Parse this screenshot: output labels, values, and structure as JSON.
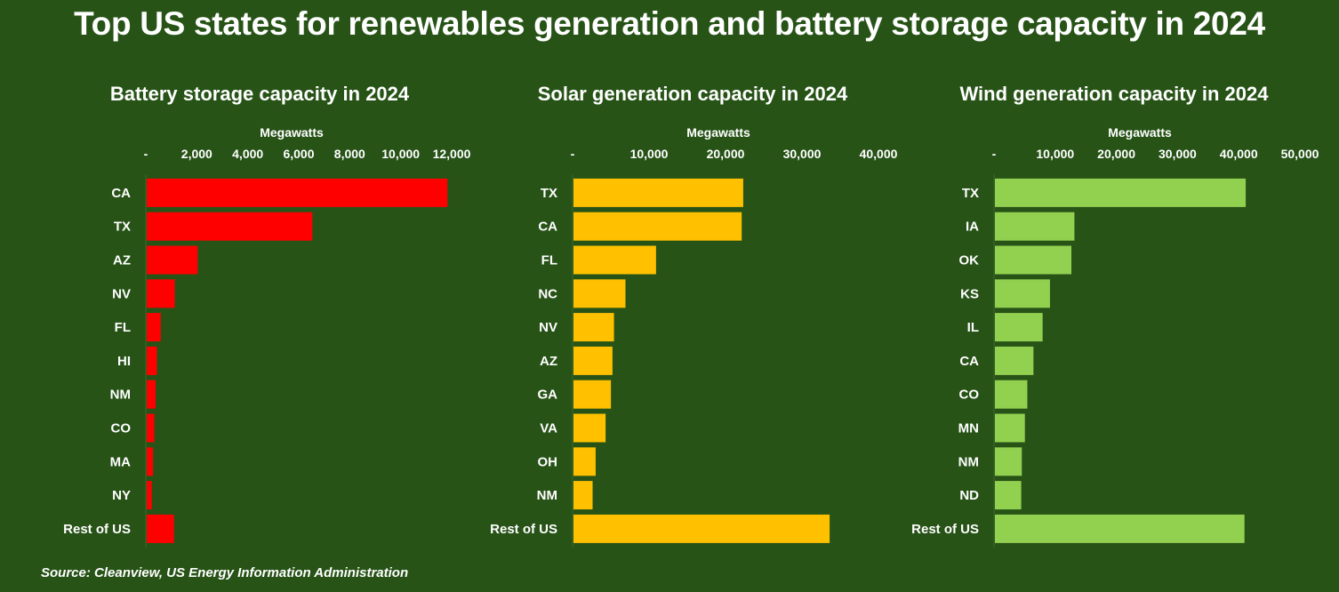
{
  "title": "Top US states for renewables generation and battery storage capacity in 2024",
  "source": "Source: Cleanview, US Energy Information Administration",
  "chart_data": [
    {
      "type": "bar",
      "orientation": "horizontal",
      "title": "Battery storage capacity in 2024",
      "xlabel": "Megawatts",
      "color": "#FF0000",
      "xlim": [
        0,
        12000
      ],
      "ticks": [
        0,
        2000,
        4000,
        6000,
        8000,
        10000,
        12000
      ],
      "tick_labels": [
        "-",
        "2,000",
        "4,000",
        "6,000",
        "8,000",
        "10,000",
        "12,000"
      ],
      "categories": [
        "CA",
        "TX",
        "AZ",
        "NV",
        "FL",
        "HI",
        "NM",
        "CO",
        "MA",
        "NY",
        "Rest of US"
      ],
      "values": [
        11800,
        6500,
        2000,
        1100,
        550,
        400,
        350,
        300,
        250,
        200,
        1070
      ]
    },
    {
      "type": "bar",
      "orientation": "horizontal",
      "title": "Solar generation capacity in 2024",
      "xlabel": "Megawatts",
      "color": "#FFC000",
      "xlim": [
        0,
        40000
      ],
      "ticks": [
        0,
        10000,
        20000,
        30000,
        40000
      ],
      "tick_labels": [
        "-",
        "10,000",
        "20,000",
        "30,000",
        "40,000"
      ],
      "categories": [
        "TX",
        "CA",
        "FL",
        "NC",
        "NV",
        "AZ",
        "GA",
        "VA",
        "OH",
        "NM",
        "Rest of US"
      ],
      "values": [
        22200,
        22000,
        10800,
        6800,
        5300,
        5100,
        4900,
        4200,
        2900,
        2500,
        33500
      ]
    },
    {
      "type": "bar",
      "orientation": "horizontal",
      "title": "Wind generation capacity in 2024",
      "xlabel": "Megawatts",
      "color": "#92D050",
      "xlim": [
        0,
        50000
      ],
      "ticks": [
        0,
        10000,
        20000,
        30000,
        40000,
        50000
      ],
      "tick_labels": [
        "-",
        "10,000",
        "20,000",
        "30,000",
        "40,000",
        "50,000"
      ],
      "categories": [
        "TX",
        "IA",
        "OK",
        "KS",
        "IL",
        "CA",
        "CO",
        "MN",
        "NM",
        "ND",
        "Rest of US"
      ],
      "values": [
        41000,
        13000,
        12500,
        9000,
        7800,
        6300,
        5300,
        4900,
        4400,
        4300,
        40800
      ]
    }
  ]
}
